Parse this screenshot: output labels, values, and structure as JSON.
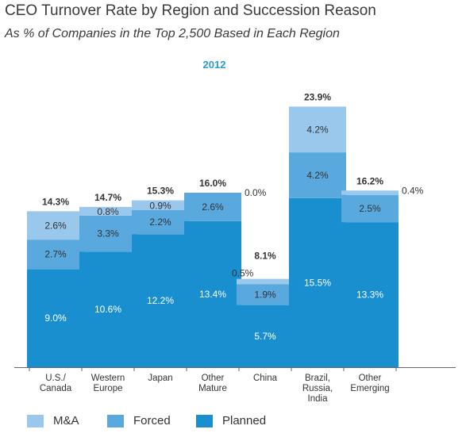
{
  "chart_data": {
    "type": "bar",
    "stacked": true,
    "title": "CEO Turnover Rate by Region and Succession Reason",
    "subtitle": "As % of Companies in the Top 2,500 Based in Each Region",
    "year_label": "2012",
    "categories": [
      [
        "U.S./",
        "Canada"
      ],
      [
        "Western",
        "Europe"
      ],
      [
        "Japan"
      ],
      [
        "Other",
        "Mature"
      ],
      [
        "China"
      ],
      [
        "Brazil,",
        "Russia,",
        "India"
      ],
      [
        "Other",
        "Emerging"
      ]
    ],
    "series": [
      {
        "name": "Planned",
        "color": "#1a8fd0",
        "values": [
          9.0,
          10.6,
          12.2,
          13.4,
          5.7,
          15.5,
          13.3
        ],
        "labels": [
          "9.0%",
          "10.6%",
          "12.2%",
          "13.4%",
          "5.7%",
          "15.5%",
          "13.3%"
        ]
      },
      {
        "name": "Forced",
        "color": "#5aa9de",
        "values": [
          2.7,
          3.3,
          2.2,
          2.6,
          1.9,
          4.2,
          2.5
        ],
        "labels": [
          "2.7%",
          "3.3%",
          "2.2%",
          "2.6%",
          "1.9%",
          "4.2%",
          "2.5%"
        ]
      },
      {
        "name": "M&A",
        "color": "#9ac7ec",
        "values": [
          2.6,
          0.8,
          0.9,
          0.0,
          0.5,
          4.2,
          0.4
        ],
        "labels": [
          "2.6%",
          "0.8%",
          "0.9%",
          "0.0%",
          "0.5%",
          "4.2%",
          "0.4%"
        ]
      }
    ],
    "totals": [
      "14.3%",
      "14.7%",
      "15.3%",
      "16.0%",
      "8.1%",
      "23.9%",
      "16.2%"
    ],
    "ylim": [
      0,
      24.5
    ],
    "grid": false,
    "legend": [
      "M&A",
      "Forced",
      "Planned"
    ],
    "legend_position": "bottom"
  }
}
